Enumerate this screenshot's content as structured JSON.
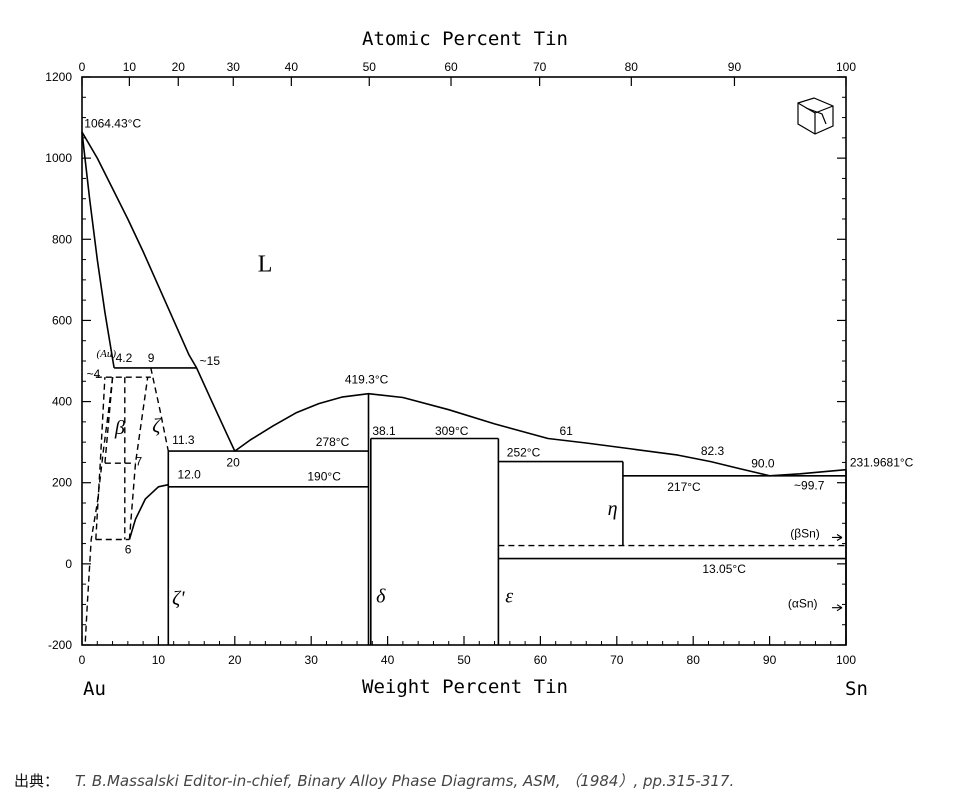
{
  "chart_data": {
    "type": "phase-diagram",
    "title": "",
    "top_axis": {
      "label": "Atomic Percent Tin",
      "ticks": [
        0,
        10,
        20,
        30,
        40,
        50,
        60,
        70,
        80,
        90,
        100
      ],
      "tick_wt": [
        0,
        6.2,
        12.6,
        19.8,
        27.4,
        37.6,
        48.3,
        59.9,
        71.9,
        85.4,
        100
      ]
    },
    "bottom_axis": {
      "label": "Weight Percent Tin",
      "range": [
        0,
        100
      ],
      "ticks": [
        0,
        10,
        20,
        30,
        40,
        50,
        60,
        70,
        80,
        90,
        100
      ]
    },
    "left_axis": {
      "label": "",
      "range": [
        -200,
        1200
      ],
      "ticks": [
        -200,
        0,
        200,
        400,
        600,
        800,
        1000,
        1200
      ]
    },
    "end_labels": {
      "left": "Au",
      "right": "Sn"
    },
    "phase_labels": [
      {
        "text": "L",
        "x": 23,
        "y": 720
      },
      {
        "text": "β",
        "x": 4.3,
        "y": 320
      },
      {
        "text": "ζ",
        "x": 9.2,
        "y": 325
      },
      {
        "text": "ζ'",
        "x": 11.8,
        "y": -100
      },
      {
        "text": "δ",
        "x": 38.5,
        "y": -95
      },
      {
        "text": "ε",
        "x": 55.4,
        "y": -95
      },
      {
        "text": "η",
        "x": 68.8,
        "y": 120
      },
      {
        "text": "(Au)",
        "x": 1.9,
        "y": 510
      }
    ],
    "annotations": [
      {
        "text": "1064.43°C",
        "x": 0.3,
        "y": 1075
      },
      {
        "text": "4.2",
        "x": 4.4,
        "y": 498
      },
      {
        "text": "9",
        "x": 8.6,
        "y": 498
      },
      {
        "text": "~15",
        "x": 15.4,
        "y": 490
      },
      {
        "text": "~4",
        "x": 0.6,
        "y": 458
      },
      {
        "text": "419.3°C",
        "x": 34.4,
        "y": 445
      },
      {
        "text": "11.3",
        "x": 11.8,
        "y": 296
      },
      {
        "text": "7",
        "x": 7.0,
        "y": 242
      },
      {
        "text": "20",
        "x": 18.9,
        "y": 240
      },
      {
        "text": "278°C",
        "x": 30.6,
        "y": 290
      },
      {
        "text": "38.1",
        "x": 38.0,
        "y": 318
      },
      {
        "text": "309°C",
        "x": 46.2,
        "y": 318
      },
      {
        "text": "61",
        "x": 62.5,
        "y": 318
      },
      {
        "text": "252°C",
        "x": 55.6,
        "y": 265
      },
      {
        "text": "82.3",
        "x": 81.0,
        "y": 268
      },
      {
        "text": "90.0",
        "x": 87.6,
        "y": 237
      },
      {
        "text": "231.9681°C",
        "x": 100.5,
        "y": 240
      },
      {
        "text": "12.0",
        "x": 12.5,
        "y": 210
      },
      {
        "text": "190°C",
        "x": 29.5,
        "y": 205
      },
      {
        "text": "217°C",
        "x": 76.6,
        "y": 180
      },
      {
        "text": "~99.7",
        "x": 93.2,
        "y": 183
      },
      {
        "text": "6",
        "x": 5.6,
        "y": 25
      },
      {
        "text": "(βSn)",
        "x": 92.7,
        "y": 65
      },
      {
        "text": "13.05°C",
        "x": 81.2,
        "y": -22
      },
      {
        "text": "(αSn)",
        "x": 92.4,
        "y": -108
      }
    ],
    "melting_points": [
      {
        "phase": "Au",
        "x": 0,
        "y": 1064.43
      },
      {
        "phase": "Sn",
        "x": 100,
        "y": 231.9681
      }
    ],
    "liquidus": [
      {
        "x": 0,
        "y": 1064.4
      },
      {
        "x": 2,
        "y": 1000
      },
      {
        "x": 4,
        "y": 925
      },
      {
        "x": 6,
        "y": 850
      },
      {
        "x": 8,
        "y": 770
      },
      {
        "x": 10,
        "y": 685
      },
      {
        "x": 12,
        "y": 600
      },
      {
        "x": 14,
        "y": 515
      },
      {
        "x": 15,
        "y": 483
      },
      {
        "x": 17,
        "y": 400
      },
      {
        "x": 19,
        "y": 318
      },
      {
        "x": 20,
        "y": 278
      },
      {
        "x": 22,
        "y": 305
      },
      {
        "x": 25,
        "y": 340
      },
      {
        "x": 28,
        "y": 372
      },
      {
        "x": 31,
        "y": 395
      },
      {
        "x": 34,
        "y": 411
      },
      {
        "x": 37.5,
        "y": 419.3
      },
      {
        "x": 42,
        "y": 410
      },
      {
        "x": 48,
        "y": 380
      },
      {
        "x": 54,
        "y": 345
      },
      {
        "x": 61,
        "y": 309
      },
      {
        "x": 66,
        "y": 298
      },
      {
        "x": 72,
        "y": 283
      },
      {
        "x": 78,
        "y": 268
      },
      {
        "x": 82.3,
        "y": 252
      },
      {
        "x": 86,
        "y": 235
      },
      {
        "x": 90,
        "y": 217
      },
      {
        "x": 94,
        "y": 222
      },
      {
        "x": 100,
        "y": 232
      }
    ],
    "solidus_au": [
      {
        "x": 0,
        "y": 1064.4
      },
      {
        "x": 1,
        "y": 900
      },
      {
        "x": 2,
        "y": 750
      },
      {
        "x": 3,
        "y": 620
      },
      {
        "x": 4.2,
        "y": 483
      }
    ],
    "solvus_au": [
      {
        "x": 4,
        "y": 460
      },
      {
        "x": 3.5,
        "y": 380
      },
      {
        "x": 2.8,
        "y": 280
      },
      {
        "x": 2,
        "y": 150
      },
      {
        "x": 1.2,
        "y": 60
      },
      {
        "x": 0.7,
        "y": -100
      },
      {
        "x": 0.4,
        "y": -200
      }
    ],
    "zeta_solvus": [
      {
        "x": 6.2,
        "y": 60
      },
      {
        "x": 7,
        "y": 110
      },
      {
        "x": 8.3,
        "y": 160
      },
      {
        "x": 10,
        "y": 190
      },
      {
        "x": 11.3,
        "y": 195
      }
    ],
    "isotherms": [
      {
        "x1": 4.2,
        "x2": 15,
        "y": 483
      },
      {
        "x1": 11.3,
        "x2": 37.5,
        "y": 278
      },
      {
        "x1": 11.3,
        "x2": 37.5,
        "y": 190
      },
      {
        "x1": 37.8,
        "x2": 54.5,
        "y": 309
      },
      {
        "x1": 54.5,
        "x2": 70.8,
        "y": 252
      },
      {
        "x1": 70.8,
        "x2": 100,
        "y": 217
      },
      {
        "x1": 54.5,
        "x2": 100,
        "y": 13.05
      }
    ],
    "dashed_isotherms": [
      {
        "x1": 1.8,
        "x2": 9,
        "y": 460
      },
      {
        "x1": 1.8,
        "x2": 6.2,
        "y": 60
      },
      {
        "x1": 3.0,
        "x2": 7,
        "y": 248
      },
      {
        "x1": 54.5,
        "x2": 100,
        "y": 45
      }
    ],
    "dashed_lines": [
      [
        {
          "x": 1.8,
          "y": 60
        },
        {
          "x": 2.4,
          "y": 250
        },
        {
          "x": 3.0,
          "y": 460
        }
      ],
      [
        {
          "x": 4.0,
          "y": 460
        },
        {
          "x": 3.0,
          "y": 248
        }
      ],
      [
        {
          "x": 5.6,
          "y": 460
        },
        {
          "x": 5.6,
          "y": 60
        }
      ],
      [
        {
          "x": 6.2,
          "y": 60
        },
        {
          "x": 7.0,
          "y": 248
        },
        {
          "x": 8.6,
          "y": 460
        }
      ],
      [
        {
          "x": 9.0,
          "y": 483
        },
        {
          "x": 10.2,
          "y": 380
        },
        {
          "x": 11.3,
          "y": 278
        }
      ]
    ],
    "phase_boundaries": [
      {
        "x": 11.3,
        "y1": -200,
        "y2": 278
      },
      {
        "x": 37.5,
        "y1": -200,
        "y2": 419.3
      },
      {
        "x": 37.8,
        "y1": -200,
        "y2": 309
      },
      {
        "x": 54.5,
        "y1": -200,
        "y2": 309
      },
      {
        "x": 70.8,
        "y1": 45,
        "y2": 252
      },
      {
        "x": 100,
        "y1": -200,
        "y2": 232
      }
    ],
    "grid": false,
    "legend": "none"
  },
  "footer": {
    "source_label": "出典：",
    "reference": "T. B.Massalski Editor-in-chief, Binary Alloy Phase Diagrams, ASM, （1984）, pp.315-317."
  }
}
